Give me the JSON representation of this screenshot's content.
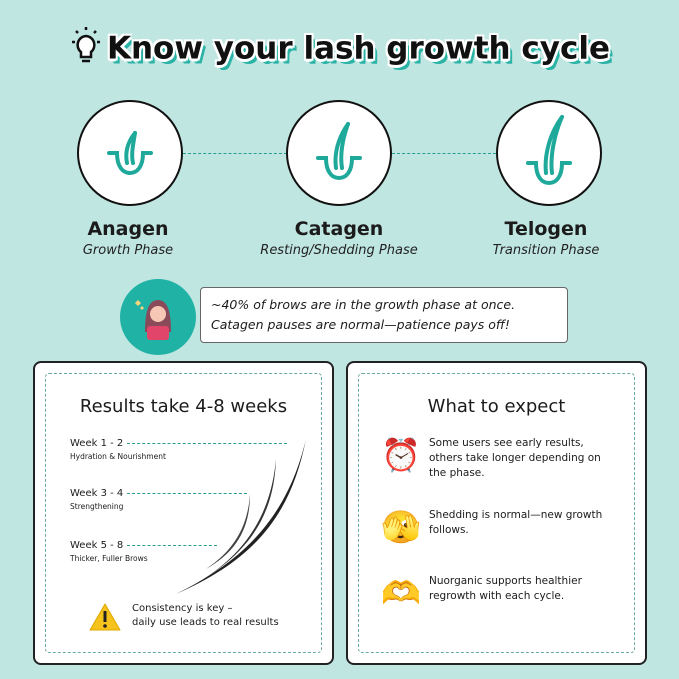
{
  "header": {
    "title": "Know your lash growth cycle",
    "icon": "lightbulb-icon"
  },
  "phases": [
    {
      "name": "Anagen",
      "subtitle": "Growth Phase",
      "icon": "hair-follicle-icon"
    },
    {
      "name": "Catagen",
      "subtitle": "Resting/Shedding Phase",
      "icon": "hair-follicle-icon"
    },
    {
      "name": "Telogen",
      "subtitle": "Transition Phase",
      "icon": "hair-follicle-icon"
    }
  ],
  "callout": {
    "line1": "~40% of brows are in the growth phase at once.",
    "line2": "Catagen pauses are normal—patience pays off!",
    "icon": "woman-avatar-icon"
  },
  "results": {
    "title": "Results take 4-8 weeks",
    "weeks": [
      {
        "label": "Week 1 - 2",
        "desc": "Hydration & Nourishment"
      },
      {
        "label": "Week 3 - 4",
        "desc": "Strengthening"
      },
      {
        "label": "Week 5 - 8",
        "desc": "Thicker, Fuller Brows"
      }
    ],
    "note_line1": "Consistency is key –",
    "note_line2": "daily use leads to real results",
    "note_icon": "warning-icon"
  },
  "expect": {
    "title": "What to expect",
    "items": [
      {
        "icon": "alarm-clock-icon",
        "glyph": "⏰",
        "text": "Some users see early results, others take longer depending on the phase."
      },
      {
        "icon": "face-peeking-icon",
        "glyph": "🫣",
        "text": "Shedding is normal—new growth follows."
      },
      {
        "icon": "heart-hands-icon",
        "glyph": "🫶",
        "text": "Nuorganic supports healthier regrowth with each cycle."
      }
    ]
  },
  "colors": {
    "background": "#c0e6e2",
    "teal": "#1fa99b"
  }
}
